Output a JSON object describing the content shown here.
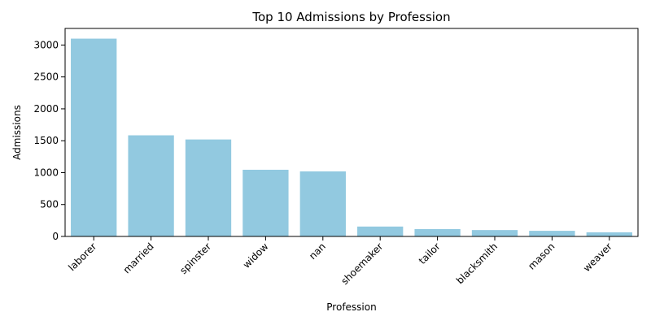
{
  "chart_data": {
    "type": "bar",
    "title": "Top 10 Admissions by Profession",
    "xlabel": "Profession",
    "ylabel": "Admissions",
    "categories": [
      "laborer",
      "married",
      "spinster",
      "widow",
      "nan",
      "shoemaker",
      "tailor",
      "blacksmith",
      "mason",
      "weaver"
    ],
    "values": [
      3100,
      1585,
      1520,
      1045,
      1020,
      155,
      115,
      100,
      88,
      65
    ],
    "ylim": [
      0,
      3260
    ],
    "yticks": [
      0,
      500,
      1000,
      1500,
      2000,
      2500,
      3000
    ],
    "bar_color": "#92c9e0",
    "grid": false,
    "legend": "none"
  }
}
